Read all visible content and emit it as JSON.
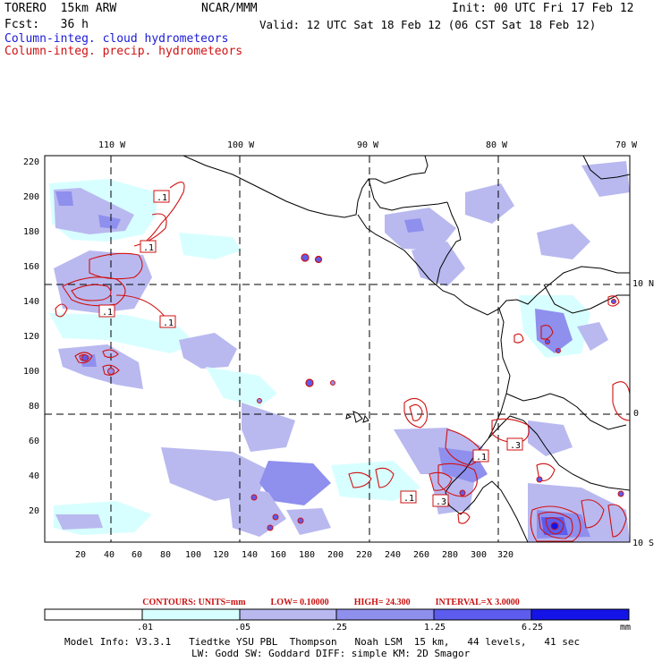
{
  "header": {
    "model": "TORERO  15km ARW",
    "org": "NCAR/MMM",
    "init": "Init: 00 UTC Fri 17 Feb 12",
    "fcst": "Fcst:   36 h",
    "valid": "Valid: 12 UTC Sat 18 Feb 12 (06 CST Sat 18 Feb 12)",
    "field_cloud": "Column-integ. cloud hydrometeors",
    "field_precip": "Column-integ. precip. hydrometeors"
  },
  "axes": {
    "top_lon_labels": [
      "110 W",
      "100 W",
      "90 W",
      "80 W",
      "70 W"
    ],
    "right_lat_labels": [
      "10 N",
      "0",
      "10 S"
    ],
    "x_ticks": [
      "20",
      "40",
      "60",
      "80",
      "100",
      "120",
      "140",
      "160",
      "180",
      "200",
      "220",
      "240",
      "260",
      "280",
      "300",
      "320"
    ],
    "y_ticks": [
      "220",
      "200",
      "180",
      "160",
      "140",
      "120",
      "100",
      "80",
      "60",
      "40",
      "20"
    ]
  },
  "contour_labels": [
    ".1",
    ".1",
    ".1",
    ".1",
    ".1",
    ".3",
    ".3",
    ".1"
  ],
  "contours_info": {
    "units": "CONTOURS:  UNITS=mm",
    "low": "LOW= 0.10000",
    "high": "HIGH=  24.300",
    "interval": "INTERVAL=X  3.0000"
  },
  "colorbar": {
    "ticks": [
      ".01",
      ".05",
      ".25",
      "1.25",
      "6.25"
    ],
    "unit": "mm",
    "colors": [
      "#ffffff",
      "#d8ffff",
      "#b9b9f0",
      "#8f8fee",
      "#5c5cee",
      "#1414e8"
    ]
  },
  "footer": {
    "line1": "Model Info: V3.3.1   Tiedtke YSU PBL  Thompson   Noah LSM  15 km,   44 levels,   41 sec",
    "line2": "LW: Godd SW: Goddard DIFF: simple KM: 2D Smagor"
  },
  "colors": {
    "cloud_title": "#1b1bd6",
    "precip_title": "#d01010",
    "contour": "#d01010",
    "coast": "#000000"
  }
}
